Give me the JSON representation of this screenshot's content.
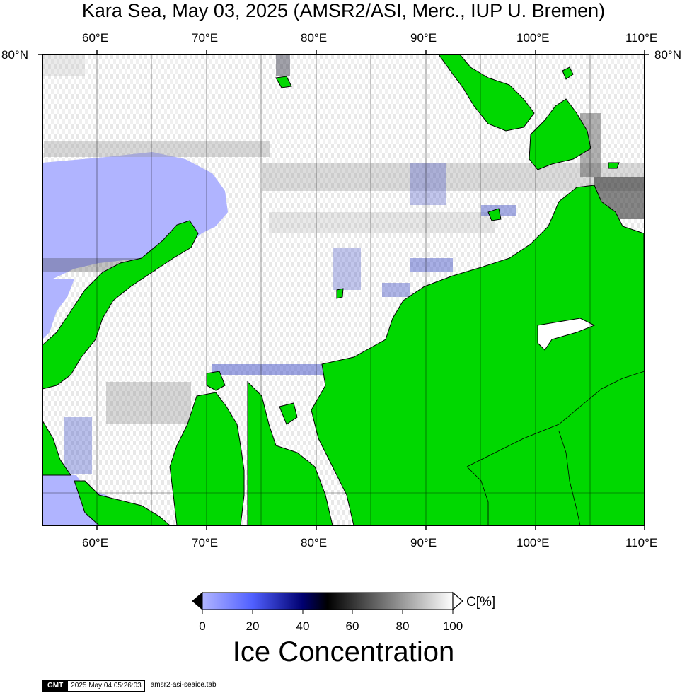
{
  "title": "Kara Sea, May 03, 2025 (AMSR2/ASI, Merc., IUP U. Bremen)",
  "axes": {
    "top_ticks": [
      "60°E",
      "70°E",
      "80°E",
      "90°E",
      "100°E",
      "110°E"
    ],
    "bottom_ticks": [
      "60°E",
      "70°E",
      "80°E",
      "90°E",
      "100°E",
      "110°E"
    ],
    "left_label": "80°N",
    "right_label": "80°N"
  },
  "colorbar": {
    "ticks": [
      "0",
      "20",
      "40",
      "60",
      "80",
      "100"
    ],
    "unit": "C[%]",
    "title": "Ice Concentration",
    "colors": [
      "#b0b4ff",
      "#5060ff",
      "#000070",
      "#000000",
      "#808080",
      "#ffffff"
    ]
  },
  "colors": {
    "land": "#00d800",
    "open_water": "#b0b4ff",
    "ice": "#ffffff"
  },
  "footer": {
    "logo": "GMT",
    "timestamp": "2025 May 04 05:26:03",
    "file": "amsr2-asi-seaice.tab"
  }
}
